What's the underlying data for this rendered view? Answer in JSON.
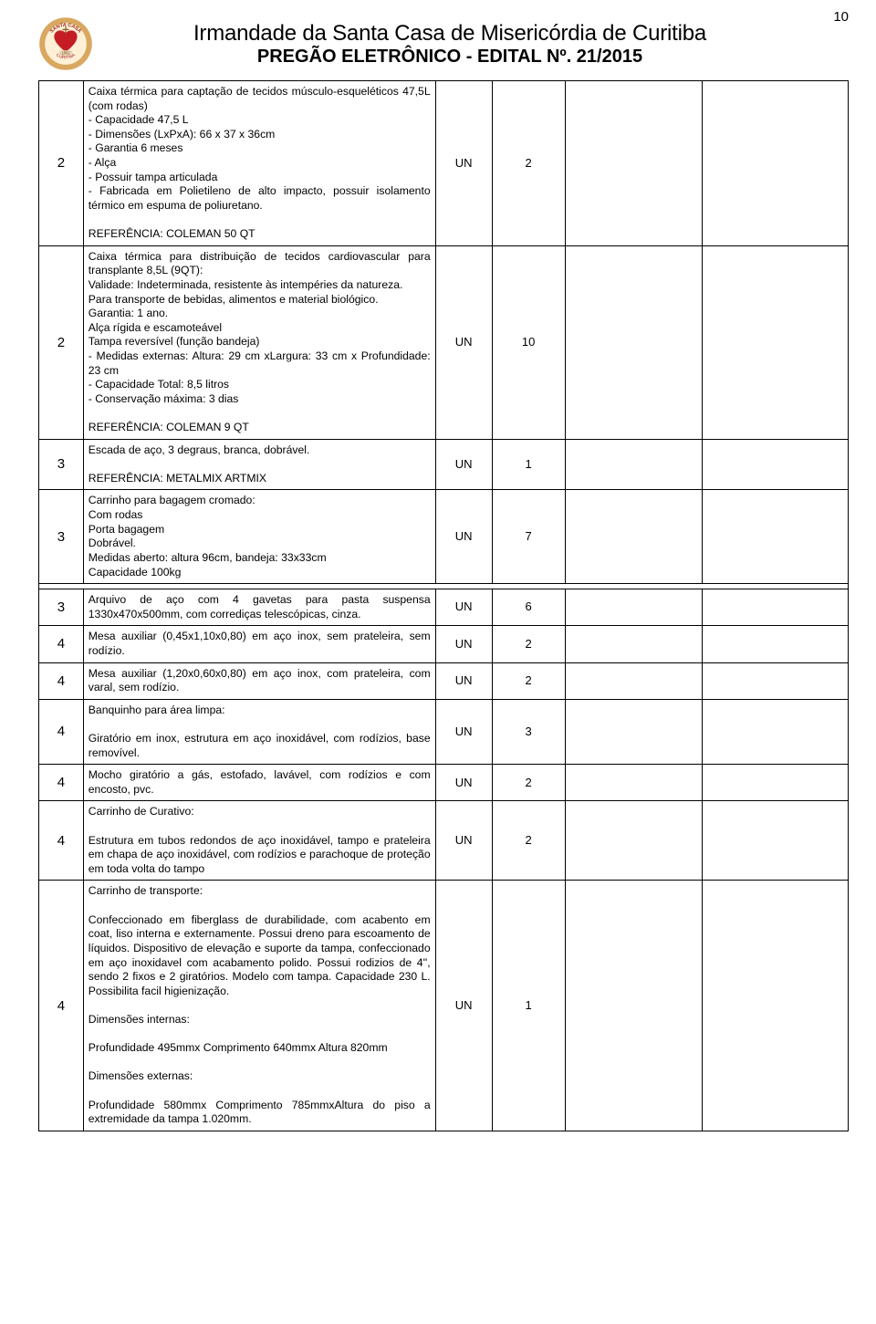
{
  "page_number": "10",
  "header": {
    "title": "Irmandade da Santa Casa de Misericórdia de Curitiba",
    "subtitle": "PREGÃO ELETRÔNICO - EDITAL Nº. 21/2015"
  },
  "logo": {
    "top_text": "SANTA CASA",
    "year": "1852",
    "bottom_text": "CURITIBA",
    "ring_color": "#d9a860",
    "inner_color": "#fff0d6",
    "heart_color": "#c41e24",
    "text_color": "#a02020"
  },
  "colors": {
    "border": "#000000",
    "bg": "#ffffff",
    "text": "#000000"
  },
  "rows": [
    {
      "num": "2",
      "desc_html": "Caixa térmica para captação de tecidos músculo-esqueléticos 47,5L (com rodas)\n- Capacidade 47,5 L\n- Dimensões (LxPxA): 66 x 37 x 36cm\n- Garantia 6 meses\n- Alça\n- Possuir tampa articulada\n- Fabricada em Polietileno de alto impacto, possuir isolamento térmico em espuma de poliuretano.\n\nREFERÊNCIA: COLEMAN 50 QT",
      "unit": "UN",
      "qty": "2"
    },
    {
      "num": "2",
      "desc_html": "Caixa térmica para distribuição de tecidos cardiovascular para transplante 8,5L (9QT):\nValidade: Indeterminada, resistente às intempéries da natureza.\nPara transporte de bebidas, alimentos e material biológico.\nGarantia: 1 ano.\nAlça rígida e escamoteável\nTampa reversível (função bandeja)\n- Medidas externas: Altura: 29 cm xLargura: 33 cm x Profundidade: 23 cm\n- Capacidade Total: 8,5 litros\n- Conservação máxima: 3 dias\n\nREFERÊNCIA: COLEMAN 9 QT",
      "unit": "UN",
      "qty": "10"
    },
    {
      "num": "3",
      "desc_html": "Escada de aço, 3 degraus, branca, dobrável.\n\nREFERÊNCIA: METALMIX ARTMIX",
      "unit": "UN",
      "qty": "1"
    },
    {
      "num": "3",
      "desc_html": "Carrinho para bagagem cromado:\nCom rodas\nPorta bagagem\nDobrável.\nMedidas aberto: altura 96cm, bandeja: 33x33cm\nCapacidade 100kg",
      "unit": "UN",
      "qty": "7"
    }
  ],
  "rows2": [
    {
      "num": "3",
      "desc_html": "Arquivo de aço com 4 gavetas para pasta suspensa 1330x470x500mm, com corrediças telescópicas, cinza.",
      "unit": "UN",
      "qty": "6"
    },
    {
      "num": "4",
      "desc_html": "Mesa auxiliar (0,45x1,10x0,80) em aço inox, sem prateleira, sem rodízio.",
      "unit": "UN",
      "qty": "2"
    },
    {
      "num": "4",
      "desc_html": "Mesa auxiliar (1,20x0,60x0,80) em aço inox, com prateleira, com varal, sem rodízio.",
      "unit": "UN",
      "qty": "2"
    },
    {
      "num": "4",
      "desc_html": "Banquinho para área limpa:\n\nGiratório em inox, estrutura em aço inoxidável, com rodízios, base removível.",
      "unit": "UN",
      "qty": "3"
    },
    {
      "num": "4",
      "desc_html": "Mocho giratório a gás, estofado, lavável, com rodízios e com encosto, pvc.",
      "unit": "UN",
      "qty": "2"
    },
    {
      "num": "4",
      "desc_html": "Carrinho de Curativo:\n\nEstrutura em tubos redondos de aço inoxidável, tampo e prateleira em chapa de aço inoxidável, com rodízios e parachoque de proteção em toda volta do tampo",
      "unit": "UN",
      "qty": "2"
    },
    {
      "num": "4",
      "desc_html": "Carrinho de transporte:\n\nConfeccionado em fiberglass de durabilidade, com acabento em coat, liso interna e externamente. Possui dreno para escoamento de líquidos. Dispositivo de elevação e suporte da tampa, confeccionado em aço inoxidavel com acabamento polido. Possui rodizios de 4'', sendo 2 fixos e 2 giratórios. Modelo com tampa. Capacidade 230 L. Possibilita facil higienização.\n\nDimensões internas:\n\nProfundidade 495mmx Comprimento 640mmx Altura 820mm\n\nDimensões externas:\n\nProfundidade 580mmx Comprimento 785mmxAltura do piso a extremidade da tampa 1.020mm.",
      "unit": "UN",
      "qty": "1"
    }
  ]
}
